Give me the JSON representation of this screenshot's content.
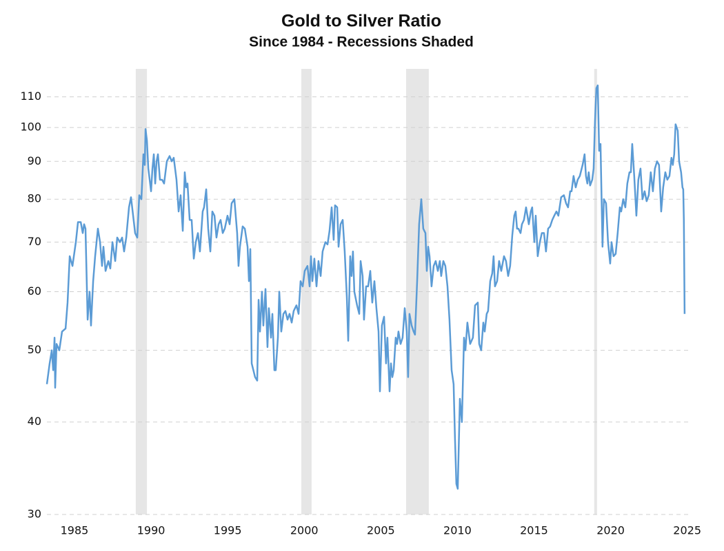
{
  "chart_data": {
    "type": "line",
    "title": "Gold to Silver Ratio",
    "subtitle": "Since 1984 - Recessions Shaded",
    "color": "#5b9bd5",
    "recession_color": "#e6e6e6",
    "log_scale": true,
    "grid": true,
    "xlim": [
      1983.2,
      2025.15
    ],
    "xticks": [
      1985,
      1990,
      1995,
      2000,
      2005,
      2010,
      2015,
      2020,
      2025
    ],
    "ylim": [
      30,
      120
    ],
    "yticks": [
      30,
      40,
      50,
      60,
      70,
      80,
      90,
      100,
      110
    ],
    "recessions": [
      [
        1989.0,
        1989.73
      ],
      [
        1999.81,
        2000.48
      ],
      [
        2006.65,
        2008.13
      ],
      [
        2018.93,
        2019.11
      ]
    ],
    "x": [
      1983.2,
      1983.38,
      1983.52,
      1983.61,
      1983.7,
      1983.74,
      1983.83,
      1984.01,
      1984.19,
      1984.42,
      1984.55,
      1984.69,
      1984.87,
      1985.09,
      1985.23,
      1985.41,
      1985.54,
      1985.63,
      1985.72,
      1985.86,
      1985.99,
      1986.08,
      1986.22,
      1986.35,
      1986.53,
      1986.67,
      1986.8,
      1986.89,
      1987.03,
      1987.21,
      1987.34,
      1987.48,
      1987.66,
      1987.79,
      1987.97,
      1988.11,
      1988.24,
      1988.38,
      1988.56,
      1988.69,
      1988.83,
      1988.96,
      1989.1,
      1989.23,
      1989.37,
      1989.5,
      1989.59,
      1989.64,
      1989.73,
      1989.82,
      1989.91,
      1990.0,
      1990.09,
      1990.18,
      1990.27,
      1990.36,
      1990.45,
      1990.58,
      1990.72,
      1990.85,
      1991.03,
      1991.21,
      1991.35,
      1991.48,
      1991.66,
      1991.8,
      1991.93,
      1992.07,
      1992.2,
      1992.29,
      1992.38,
      1992.52,
      1992.65,
      1992.79,
      1992.92,
      1993.06,
      1993.19,
      1993.37,
      1993.46,
      1993.6,
      1993.73,
      1993.87,
      1994.0,
      1994.14,
      1994.27,
      1994.41,
      1994.54,
      1994.68,
      1994.81,
      1994.99,
      1995.13,
      1995.26,
      1995.44,
      1995.62,
      1995.71,
      1995.8,
      1995.98,
      1996.12,
      1996.3,
      1996.39,
      1996.48,
      1996.57,
      1996.79,
      1996.93,
      1997.02,
      1997.11,
      1997.24,
      1997.33,
      1997.47,
      1997.6,
      1997.69,
      1997.83,
      1997.92,
      1998.05,
      1998.14,
      1998.28,
      1998.37,
      1998.5,
      1998.64,
      1998.77,
      1998.91,
      1999.04,
      1999.18,
      1999.31,
      1999.49,
      1999.63,
      1999.76,
      1999.9,
      2000.03,
      2000.21,
      2000.35,
      2000.44,
      2000.53,
      2000.66,
      2000.8,
      2000.93,
      2001.07,
      2001.2,
      2001.38,
      2001.52,
      2001.65,
      2001.79,
      2001.92,
      2002.01,
      2002.15,
      2002.24,
      2002.37,
      2002.51,
      2002.64,
      2002.78,
      2002.87,
      2003.0,
      2003.09,
      2003.18,
      2003.27,
      2003.45,
      2003.59,
      2003.68,
      2003.81,
      2003.9,
      2004.04,
      2004.17,
      2004.31,
      2004.44,
      2004.58,
      2004.71,
      2004.85,
      2004.94,
      2005.07,
      2005.21,
      2005.34,
      2005.43,
      2005.57,
      2005.66,
      2005.75,
      2005.84,
      2005.97,
      2006.06,
      2006.15,
      2006.29,
      2006.42,
      2006.56,
      2006.69,
      2006.78,
      2006.87,
      2007.01,
      2007.14,
      2007.23,
      2007.37,
      2007.5,
      2007.64,
      2007.77,
      2007.91,
      2008.0,
      2008.09,
      2008.18,
      2008.31,
      2008.45,
      2008.58,
      2008.72,
      2008.85,
      2008.94,
      2009.08,
      2009.21,
      2009.35,
      2009.48,
      2009.62,
      2009.75,
      2009.84,
      2009.93,
      2010.02,
      2010.16,
      2010.29,
      2010.43,
      2010.52,
      2010.65,
      2010.83,
      2011.01,
      2011.15,
      2011.33,
      2011.42,
      2011.55,
      2011.69,
      2011.78,
      2011.91,
      2012.0,
      2012.14,
      2012.27,
      2012.36,
      2012.45,
      2012.59,
      2012.72,
      2012.86,
      2013.04,
      2013.17,
      2013.31,
      2013.44,
      2013.58,
      2013.71,
      2013.8,
      2013.89,
      2013.98,
      2014.12,
      2014.21,
      2014.34,
      2014.48,
      2014.57,
      2014.66,
      2014.79,
      2014.88,
      2015.02,
      2015.11,
      2015.24,
      2015.38,
      2015.51,
      2015.65,
      2015.78,
      2015.92,
      2016.05,
      2016.19,
      2016.32,
      2016.46,
      2016.59,
      2016.77,
      2016.95,
      2017.09,
      2017.22,
      2017.36,
      2017.45,
      2017.58,
      2017.72,
      2017.85,
      2017.99,
      2018.17,
      2018.3,
      2018.39,
      2018.48,
      2018.57,
      2018.66,
      2018.8,
      2018.89,
      2018.98,
      2019.07,
      2019.16,
      2019.25,
      2019.34,
      2019.47,
      2019.56,
      2019.7,
      2019.83,
      2019.97,
      2020.06,
      2020.19,
      2020.33,
      2020.46,
      2020.6,
      2020.69,
      2020.82,
      2020.96,
      2021.09,
      2021.23,
      2021.32,
      2021.41,
      2021.54,
      2021.68,
      2021.81,
      2021.95,
      2022.08,
      2022.22,
      2022.35,
      2022.49,
      2022.62,
      2022.76,
      2022.89,
      2023.03,
      2023.16,
      2023.3,
      2023.43,
      2023.57,
      2023.7,
      2023.84,
      2023.97,
      2024.06,
      2024.15,
      2024.24,
      2024.38,
      2024.47,
      2024.6,
      2024.69,
      2024.74,
      2024.78,
      2024.83
    ],
    "values": [
      45,
      48,
      50,
      47,
      52,
      44.5,
      51,
      50,
      53,
      53.5,
      58,
      67,
      65,
      70,
      74.5,
      74.5,
      72,
      74,
      73,
      55,
      60,
      54,
      62,
      67,
      73,
      70,
      65,
      69,
      64,
      66,
      64.5,
      70,
      66,
      71,
      70,
      71,
      68,
      71,
      78,
      80.5,
      76,
      72,
      71,
      81,
      80,
      92,
      89,
      99.5,
      96,
      88,
      85,
      82,
      88,
      92,
      84,
      90,
      92,
      85,
      85,
      84,
      90,
      91.5,
      90,
      91,
      85,
      77,
      81,
      72.5,
      87,
      83,
      84,
      75,
      75,
      66.5,
      70,
      72,
      68,
      77,
      78,
      82.5,
      73,
      68,
      77,
      76,
      71,
      74,
      75,
      72,
      73,
      76,
      74,
      79,
      80,
      72,
      65,
      69,
      73.5,
      73,
      69,
      62,
      68.5,
      48,
      46,
      45.5,
      58.5,
      53,
      60,
      54,
      60.5,
      50.5,
      57,
      52,
      56,
      47,
      47,
      52,
      60,
      53,
      56,
      56.5,
      55,
      56,
      54.5,
      56.5,
      57.5,
      56,
      62,
      61,
      64,
      65,
      61,
      67,
      62,
      66.5,
      61,
      66,
      63,
      68,
      70,
      69.5,
      72.5,
      78,
      70.5,
      78.5,
      78,
      69,
      74,
      75,
      68,
      59,
      51.5,
      67,
      63,
      68,
      60,
      57.5,
      56,
      66,
      63,
      55,
      61,
      61,
      64,
      58,
      62,
      57,
      53,
      44,
      54,
      55.5,
      48,
      52,
      44,
      48,
      46,
      47,
      52,
      51,
      53,
      51,
      52,
      57,
      53,
      46,
      56,
      54,
      53,
      52.5,
      62,
      74,
      80,
      73,
      72,
      64,
      69,
      67,
      61,
      65,
      66,
      64,
      66,
      63,
      66,
      65,
      61,
      55,
      47,
      45,
      38,
      33,
      32.5,
      43,
      40,
      52,
      50,
      54.5,
      51,
      52,
      57.5,
      58,
      51,
      50,
      54.5,
      53,
      56,
      56.5,
      62,
      63.5,
      67,
      61,
      62,
      66,
      64,
      67,
      66,
      63,
      65,
      71.5,
      76,
      77,
      73,
      73,
      72,
      74,
      75,
      78,
      76,
      74,
      77,
      78,
      70,
      76,
      67,
      70,
      72,
      72,
      68,
      73,
      73.5,
      75,
      76,
      77,
      76,
      80.5,
      81,
      79,
      78,
      82,
      82,
      86,
      83,
      85,
      86,
      89,
      92,
      86,
      84,
      87,
      83.5,
      85,
      88,
      102,
      113,
      114,
      93,
      95,
      69,
      80,
      79,
      70,
      65.5,
      70,
      67,
      67.5,
      72,
      78,
      77,
      80,
      78,
      84,
      87,
      87,
      95,
      86,
      76,
      85,
      88,
      80,
      82,
      79.5,
      81,
      87,
      82,
      88,
      90,
      89,
      77,
      83,
      87,
      85,
      86,
      91,
      89,
      92,
      101,
      99,
      90,
      87,
      83,
      82.5,
      75,
      56
    ]
  }
}
